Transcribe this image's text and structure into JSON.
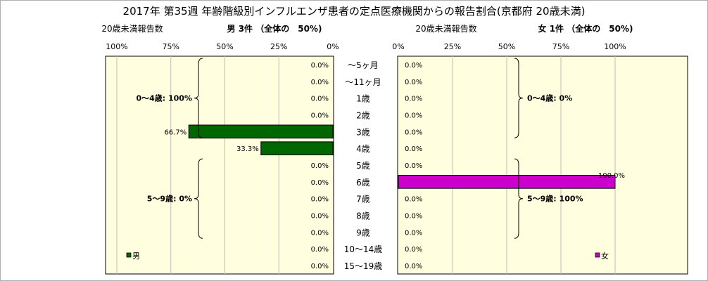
{
  "chart_data": {
    "type": "bar",
    "title": "2017年 第35週 年齢階級別インフルエンザ患者の定点医療機関からの報告割合(京都府 20歳未満)",
    "categories": [
      "～5ヶ月",
      "～11ヶ月",
      "1歳",
      "2歳",
      "3歳",
      "4歳",
      "5歳",
      "6歳",
      "7歳",
      "8歳",
      "9歳",
      "10～14歳",
      "15～19歳"
    ],
    "left_panel": {
      "count_label": "20歳未満報告数",
      "header": "男 3件 （全体の　50%)",
      "xticks": [
        "100%",
        "75%",
        "50%",
        "25%",
        "0%"
      ],
      "xlim": [
        0,
        100
      ],
      "direction": "right-to-left",
      "series": [
        {
          "name": "男",
          "color": "#006600",
          "values": [
            0,
            0,
            0,
            0,
            66.7,
            33.3,
            0,
            0,
            0,
            0,
            0,
            0,
            0
          ]
        }
      ],
      "value_labels": [
        "0.0%",
        "0.0%",
        "0.0%",
        "0.0%",
        "66.7%",
        "33.3%",
        "0.0%",
        "0.0%",
        "0.0%",
        "0.0%",
        "0.0%",
        "0.0%",
        "0.0%"
      ],
      "groups": [
        {
          "label": "0～4歳: 100%"
        },
        {
          "label": "5～9歳: 0%"
        }
      ],
      "legend_position": "bottom-left"
    },
    "right_panel": {
      "count_label": "20歳未満報告数",
      "header": "女 1件 （全体の　50%)",
      "xticks": [
        "0%",
        "25%",
        "50%",
        "75%",
        "100%"
      ],
      "xlim": [
        0,
        100
      ],
      "direction": "left-to-right",
      "series": [
        {
          "name": "女",
          "color": "#cc00cc",
          "values": [
            0,
            0,
            0,
            0,
            0,
            0,
            0,
            100,
            0,
            0,
            0,
            0,
            0
          ]
        }
      ],
      "value_labels": [
        "0.0%",
        "0.0%",
        "0.0%",
        "0.0%",
        "0.0%",
        "0.0%",
        "0.0%",
        "100.0%",
        "0.0%",
        "0.0%",
        "0.0%",
        "0.0%",
        "0.0%"
      ],
      "groups": [
        {
          "label": "0～4歳: 0%"
        },
        {
          "label": "5～9歳: 100%"
        }
      ],
      "legend_position": "bottom-right"
    },
    "plot_background": "#ffffe0",
    "grid": true
  }
}
